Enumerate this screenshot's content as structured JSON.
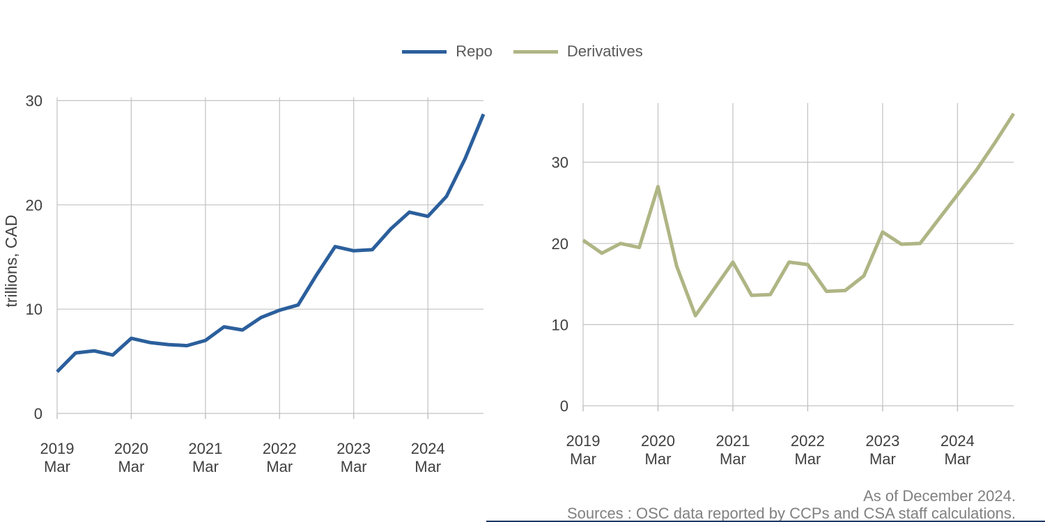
{
  "legend": {
    "items": [
      {
        "label": "Repo",
        "color": "#2B5F9C"
      },
      {
        "label": "Derivatives",
        "color": "#AFB584"
      }
    ]
  },
  "ylabel": "trillions, CAD",
  "footer": {
    "line1": "As of December 2024.",
    "line2": "Sources : OSC data reported by CCPs and CSA staff calculations."
  },
  "axis": {
    "grid_color": "#C2C2C2",
    "tick_color": "#3F3F3F"
  },
  "chart_data": [
    {
      "type": "line",
      "name": "Repo",
      "color": "#2B5F9C",
      "ylabel": "trillions, CAD",
      "legend_position": "top-center",
      "grid": true,
      "categories": [
        "2019 Mar",
        "2019 Jun",
        "2019 Sep",
        "2019 Dec",
        "2020 Mar",
        "2020 Jun",
        "2020 Sep",
        "2020 Dec",
        "2021 Mar",
        "2021 Jun",
        "2021 Sep",
        "2021 Dec",
        "2022 Mar",
        "2022 Jun",
        "2022 Sep",
        "2022 Dec",
        "2023 Mar",
        "2023 Jun",
        "2023 Sep",
        "2023 Dec",
        "2024 Mar",
        "2024 Jun",
        "2024 Sep",
        "2024 Dec"
      ],
      "values": [
        4.0,
        5.8,
        6.0,
        5.6,
        7.2,
        6.8,
        6.6,
        6.5,
        7.0,
        8.3,
        8.0,
        9.2,
        9.9,
        10.4,
        13.3,
        16.0,
        15.6,
        15.7,
        17.7,
        19.3,
        18.9,
        20.8,
        24.4,
        28.7
      ],
      "ylim": [
        0,
        30.3
      ],
      "yticks": [
        0,
        10,
        20,
        30
      ],
      "xtick_indices": [
        0,
        4,
        8,
        12,
        16,
        20
      ],
      "xtick_labels": [
        [
          "2019",
          "Mar"
        ],
        [
          "2020",
          "Mar"
        ],
        [
          "2021",
          "Mar"
        ],
        [
          "2022",
          "Mar"
        ],
        [
          "2023",
          "Mar"
        ],
        [
          "2024",
          "Mar"
        ]
      ]
    },
    {
      "type": "line",
      "name": "Derivatives",
      "color": "#AFB584",
      "ylabel": "",
      "legend_position": "top-center",
      "grid": true,
      "categories": [
        "2019 Mar",
        "2019 Jun",
        "2019 Sep",
        "2019 Dec",
        "2020 Mar",
        "2020 Jun",
        "2020 Sep",
        "2020 Dec",
        "2021 Mar",
        "2021 Jun",
        "2021 Sep",
        "2021 Dec",
        "2022 Mar",
        "2022 Jun",
        "2022 Sep",
        "2022 Dec",
        "2023 Mar",
        "2023 Jun",
        "2023 Sep",
        "2023 Dec",
        "2024 Mar",
        "2024 Jun",
        "2024 Sep",
        "2024 Dec"
      ],
      "values": [
        20.4,
        18.8,
        20.0,
        19.5,
        27.0,
        17.2,
        11.1,
        14.4,
        17.7,
        13.6,
        13.7,
        17.7,
        17.4,
        14.1,
        14.2,
        16.0,
        21.4,
        19.9,
        20.0,
        23.0,
        26.0,
        29.0,
        32.4,
        36.0
      ],
      "ylim": [
        0,
        37.3
      ],
      "yticks": [
        0,
        10,
        20,
        30
      ],
      "xtick_indices": [
        0,
        4,
        8,
        12,
        16,
        20
      ],
      "xtick_labels": [
        [
          "2019",
          "Mar"
        ],
        [
          "2020",
          "Mar"
        ],
        [
          "2021",
          "Mar"
        ],
        [
          "2022",
          "Mar"
        ],
        [
          "2023",
          "Mar"
        ],
        [
          "2024",
          "Mar"
        ]
      ]
    }
  ]
}
